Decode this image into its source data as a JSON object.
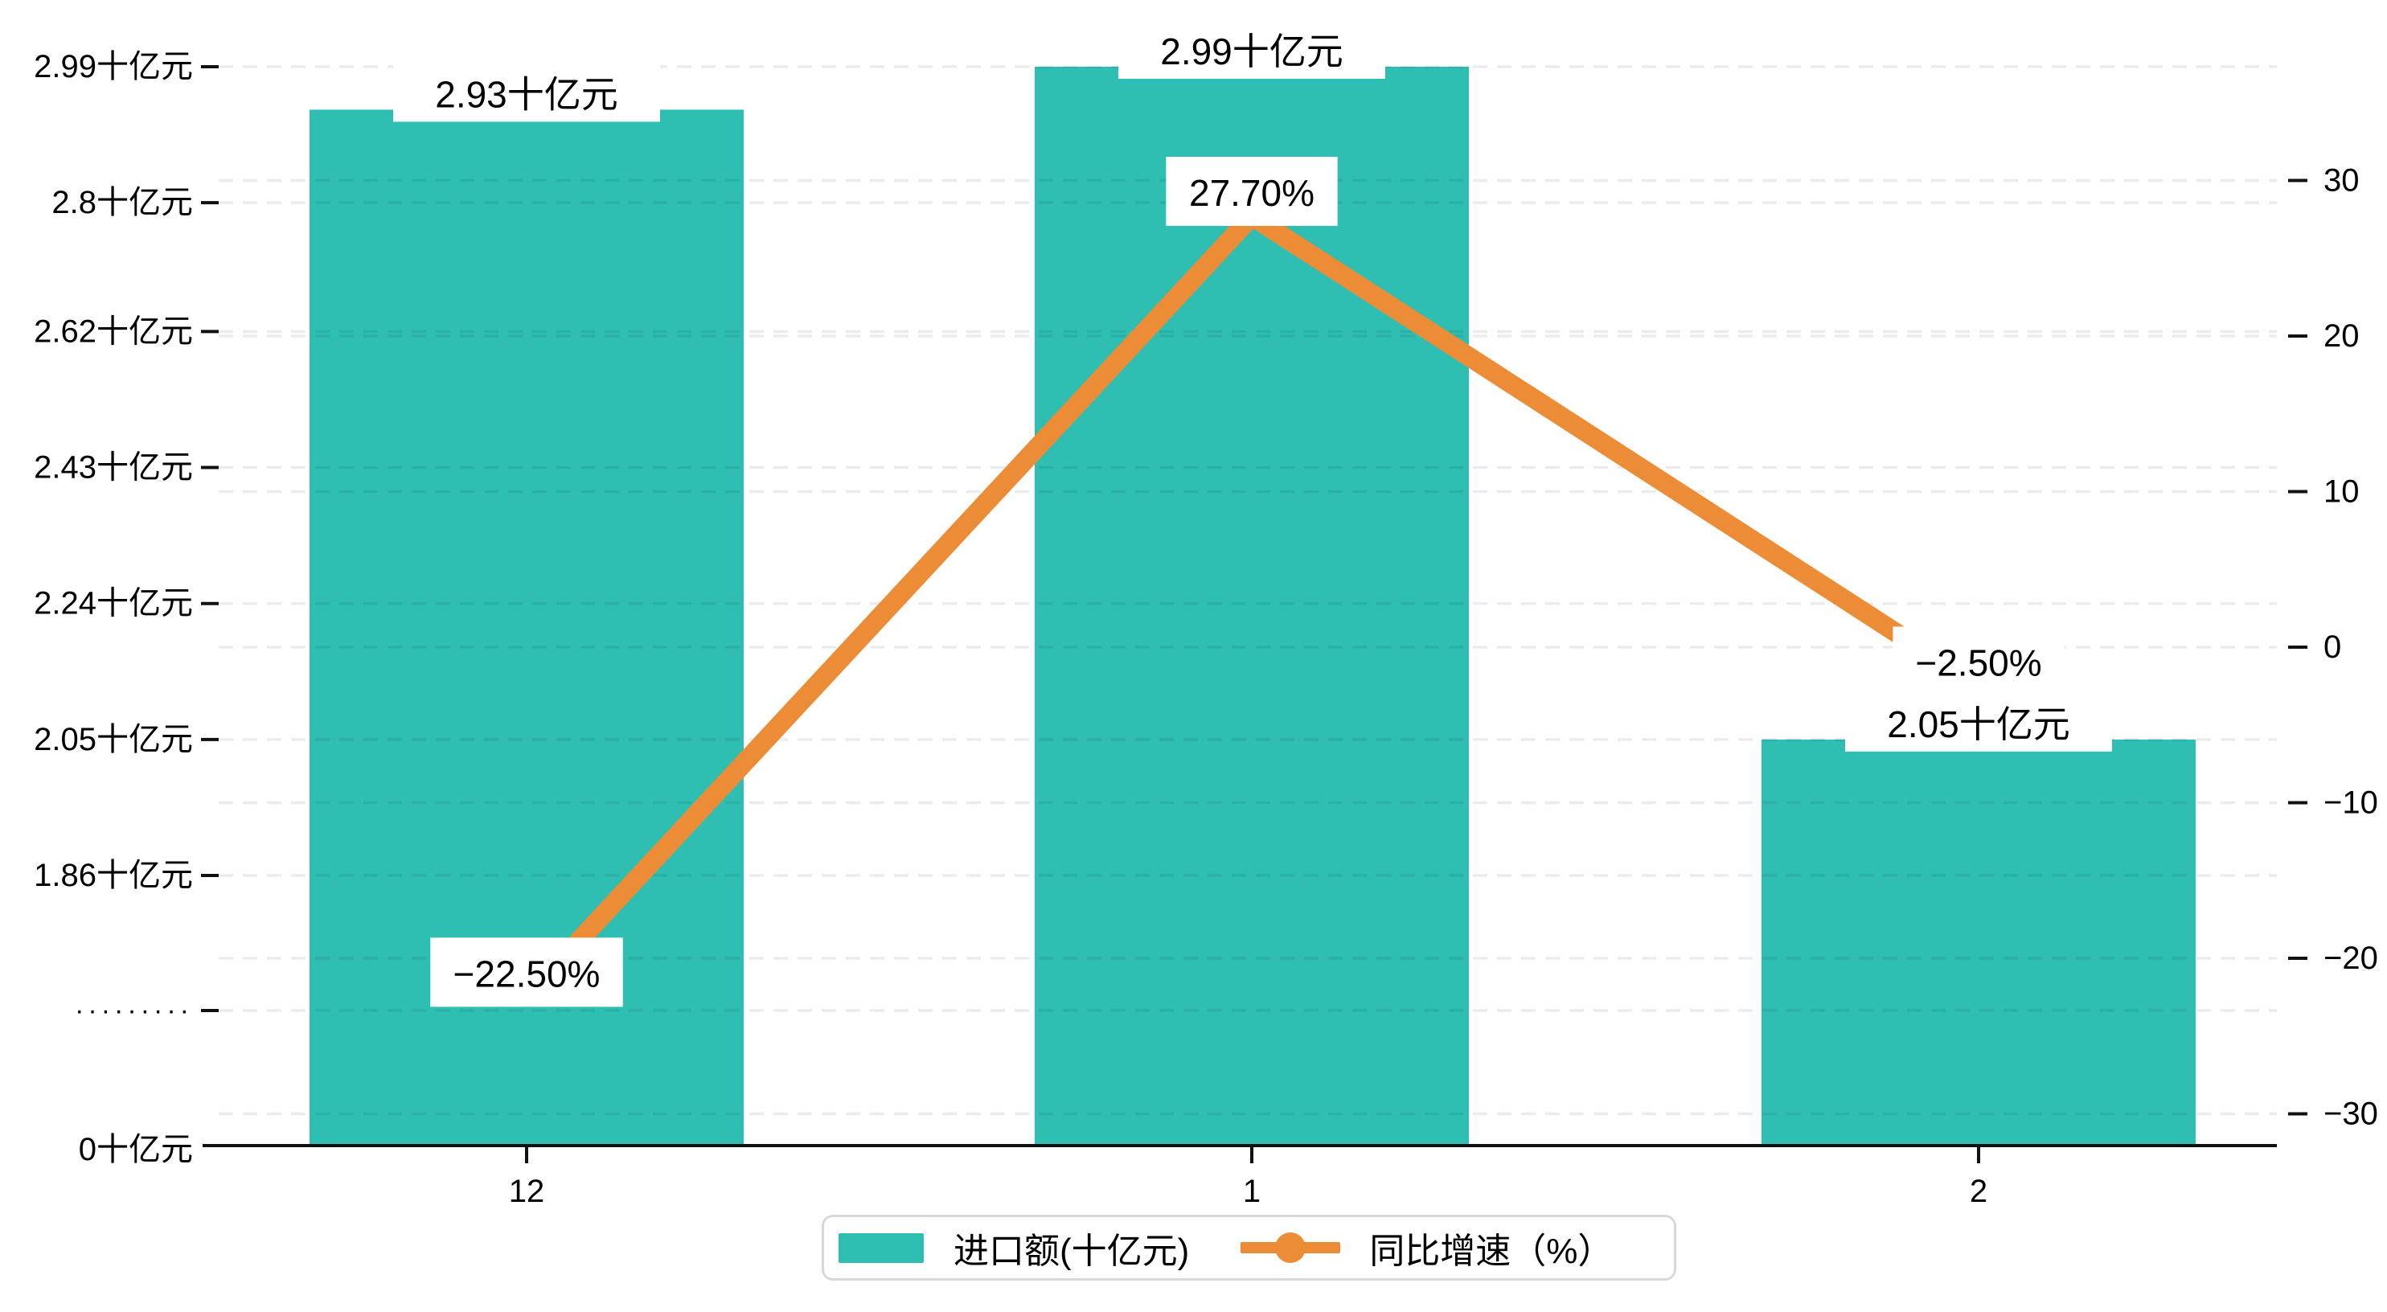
{
  "chart_data": {
    "type": "combo",
    "categories": [
      "12",
      "1",
      "2"
    ],
    "series": [
      {
        "name": "进口额(十亿元)",
        "type": "bar",
        "axis": "left",
        "values": [
          2.93,
          2.99,
          2.05
        ],
        "value_labels": [
          "2.93十亿元",
          "2.99十亿元",
          "2.05十亿元"
        ],
        "color": "#2FBFB2"
      },
      {
        "name": "同比增速（%）",
        "type": "line",
        "axis": "right",
        "values": [
          -22.5,
          27.7,
          -2.5
        ],
        "value_labels": [
          "−22.50%",
          "27.70%",
          "−2.50%"
        ],
        "color": "#ED8C36"
      }
    ],
    "left_axis": {
      "unit": "十亿元",
      "ticks": [
        {
          "label": "2.99十亿元",
          "value": 2.99
        },
        {
          "label": "2.8十亿元",
          "value": 2.8
        },
        {
          "label": "2.62十亿元",
          "value": 2.62
        },
        {
          "label": "2.43十亿元",
          "value": 2.43
        },
        {
          "label": "2.24十亿元",
          "value": 2.24
        },
        {
          "label": "2.05十亿元",
          "value": 2.05
        },
        {
          "label": "1.86十亿元",
          "value": 1.86
        },
        {
          "label": "·········",
          "value": null
        },
        {
          "label": "0十亿元",
          "value": 0
        }
      ]
    },
    "right_axis": {
      "unit": "%",
      "ticks": [
        {
          "label": "30",
          "value": 30
        },
        {
          "label": "20",
          "value": 20
        },
        {
          "label": "10",
          "value": 10
        },
        {
          "label": "0",
          "value": 0
        },
        {
          "label": "−10",
          "value": -10
        },
        {
          "label": "−20",
          "value": -20
        },
        {
          "label": "−30",
          "value": -30
        }
      ]
    },
    "legend": [
      {
        "label": "进口额(十亿元)",
        "marker": "rect",
        "color": "#2FBFB2"
      },
      {
        "label": "同比增速（%）",
        "marker": "line-dot",
        "color": "#ED8C36"
      }
    ],
    "grid": true,
    "legend_position": "bottom",
    "background": "#ffffff",
    "axis_color": "#111111",
    "gridline_color": "rgba(0,0,0,0.075)"
  }
}
